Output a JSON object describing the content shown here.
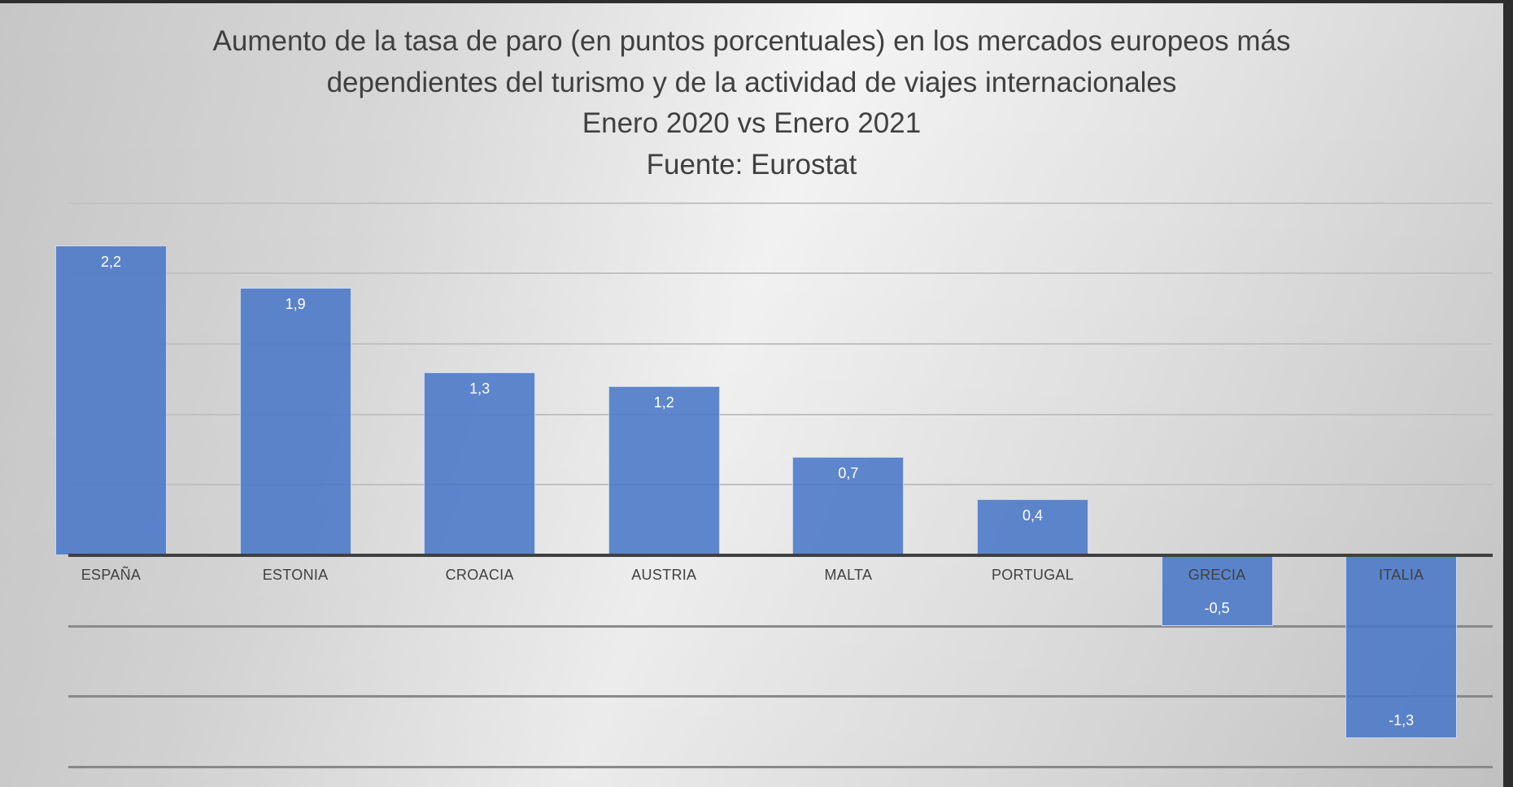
{
  "title": {
    "lines": [
      "Aumento de la tasa de paro (en puntos porcentuales) en los mercados europeos más",
      "dependientes del turismo y de la actividad de viajes internacionales",
      "Enero 2020 vs Enero 2021",
      "Fuente: Eurostat"
    ]
  },
  "colors": {
    "bar": "#5b83c8",
    "axis": "#404040",
    "text": "#404040",
    "label": "#ffffff"
  },
  "chart_data": {
    "type": "bar",
    "title": "Aumento de la tasa de paro (en puntos porcentuales) en los mercados europeos más dependientes del turismo y de la actividad de viajes internacionales. Enero 2020 vs Enero 2021. Fuente: Eurostat",
    "categories": [
      "ESPAÑA",
      "ESTONIA",
      "CROACIA",
      "AUSTRIA",
      "MALTA",
      "PORTUGAL",
      "GRECIA",
      "ITALIA"
    ],
    "values": [
      2.2,
      1.9,
      1.3,
      1.2,
      0.7,
      0.4,
      -0.5,
      -1.3
    ],
    "value_labels": [
      "2,2",
      "1,9",
      "1,3",
      "1,2",
      "0,7",
      "0,4",
      "-0,5",
      "-1,3"
    ],
    "xlabel": "",
    "ylabel": "",
    "ylim": [
      -1.5,
      2.5
    ],
    "gridlines": [
      2.5,
      2.0,
      1.5,
      1.0,
      0.5,
      0,
      -0.5,
      -1.0,
      -1.5
    ],
    "grid": true,
    "y_tick_labels_visible": false,
    "legend": null
  }
}
